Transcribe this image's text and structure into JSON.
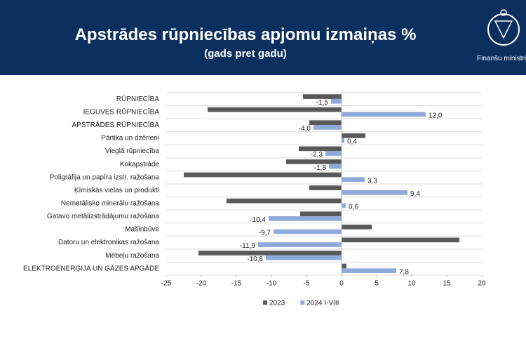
{
  "header": {
    "title": "Apstrādes rūpniecības apjomu izmaiņas %",
    "subtitle": "(gads pret gadu)",
    "logo_text": "Finanšu ministrija"
  },
  "chart_data": {
    "type": "hbar",
    "categories": [
      "RŪPNIECĪBA",
      "IEGUVES RŪPNIECĪBA",
      "APSTRĀDES RŪPNIECĪBA",
      "Pārtika un dzērieni",
      "Vieglā rūpniecība",
      "Kokapstrāde",
      "Poligrāfija un papīra izstr. ražošana",
      "Ķīmiskās vielas un produkti",
      "Nemetālisko minerālu ražošana",
      "Gatavo metālizstrādājumu ražošana",
      "Mašīnbūve",
      "Datoru un elektronikas ražošana",
      "Mēbeļu ražošana",
      "ELEKTROENERĢIJA UN GĀZES APGĀDE"
    ],
    "series": [
      {
        "name": "2023",
        "color": "#595959",
        "values": [
          -5.5,
          -19.1,
          -4.6,
          3.4,
          -6.1,
          -7.9,
          -22.5,
          -4.6,
          -16.4,
          -5.9,
          4.3,
          16.8,
          -20.4,
          0.7
        ]
      },
      {
        "name": "2024 I-VIII",
        "color": "#8eaadb",
        "values": [
          -1.5,
          12.0,
          -4.0,
          0.4,
          -2.3,
          -1.8,
          3.3,
          9.4,
          0.6,
          -10.4,
          -9.7,
          -11.9,
          -10.8,
          7.8
        ],
        "value_labels": [
          "-1,5",
          "12,0",
          "-4,0",
          "0,4",
          "-2,3",
          "-1,8",
          "3,3",
          "9,4",
          "0,6",
          "-10,4",
          "-9,7",
          "-11,9",
          "-10,8",
          "7,8"
        ]
      }
    ],
    "xlim": [
      -25,
      20
    ],
    "xticks": [
      -25,
      -20,
      -15,
      -10,
      -5,
      0,
      5,
      10,
      15,
      20
    ],
    "legend": "bottom"
  }
}
